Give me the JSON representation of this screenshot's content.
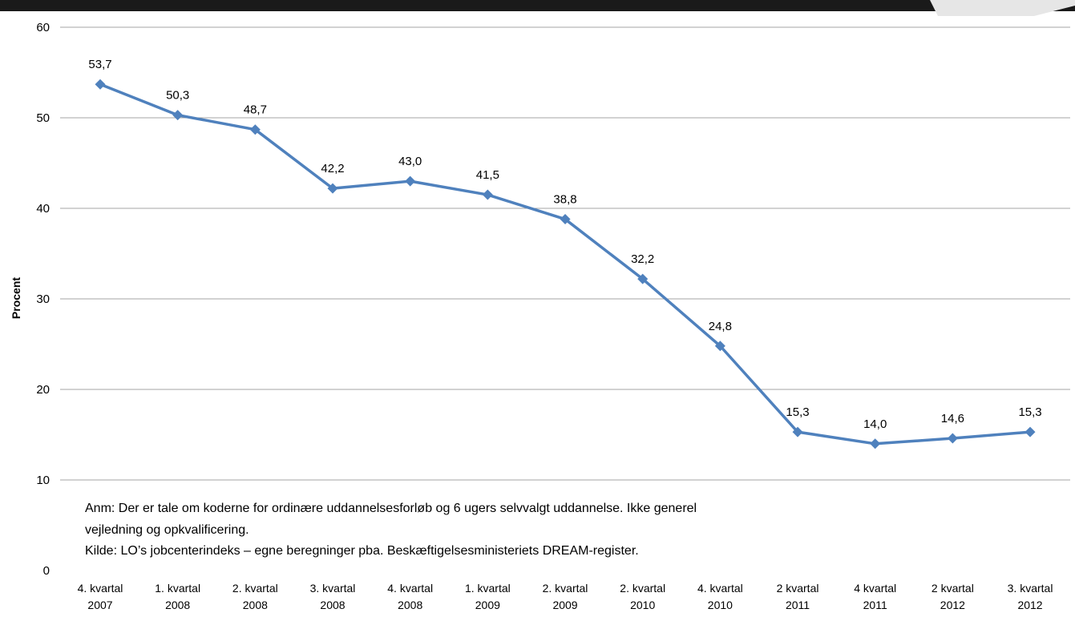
{
  "chart_data": {
    "type": "line",
    "title": "",
    "xlabel": "",
    "ylabel": "Procent",
    "ylim": [
      0,
      60
    ],
    "yticks": [
      0,
      10,
      20,
      30,
      40,
      50,
      60
    ],
    "grid": true,
    "legend": "none",
    "categories": [
      [
        "4. kvartal",
        "2007"
      ],
      [
        "1. kvartal",
        "2008"
      ],
      [
        "2. kvartal",
        "2008"
      ],
      [
        "3. kvartal",
        "2008"
      ],
      [
        "4. kvartal",
        "2008"
      ],
      [
        "1. kvartal",
        "2009"
      ],
      [
        "2. kvartal",
        "2009"
      ],
      [
        "2. kvartal",
        "2010"
      ],
      [
        "4. kvartal",
        "2010"
      ],
      [
        "2 kvartal",
        "2011"
      ],
      [
        "4 kvartal",
        "2011"
      ],
      [
        "2 kvartal",
        "2012"
      ],
      [
        "3. kvartal",
        "2012"
      ]
    ],
    "series": [
      {
        "values": [
          53.7,
          50.3,
          48.7,
          42.2,
          43.0,
          41.5,
          38.8,
          32.2,
          24.8,
          15.3,
          14.0,
          14.6,
          15.3
        ],
        "labels": [
          "53,7",
          "50,3",
          "48,7",
          "42,2",
          "43,0",
          "41,5",
          "38,8",
          "32,2",
          "24,8",
          "15,3",
          "14,0",
          "14,6",
          "15,3"
        ],
        "color": "#4f81bd",
        "marker": "diamond"
      }
    ],
    "notes": [
      "Anm: Der er tale om koderne for ordinære uddannelsesforløb og 6 ugers selvvalgt uddannelse. Ikke generel",
      "vejledning og opkvalificering.",
      "Kilde: LO’s jobcenterindeks – egne beregninger pba. Beskæftigelsesministeriets DREAM-register."
    ]
  },
  "colors": {
    "line": "#4f81bd",
    "grid": "#a6a6a6",
    "top_bar": "#1a1a1a"
  }
}
